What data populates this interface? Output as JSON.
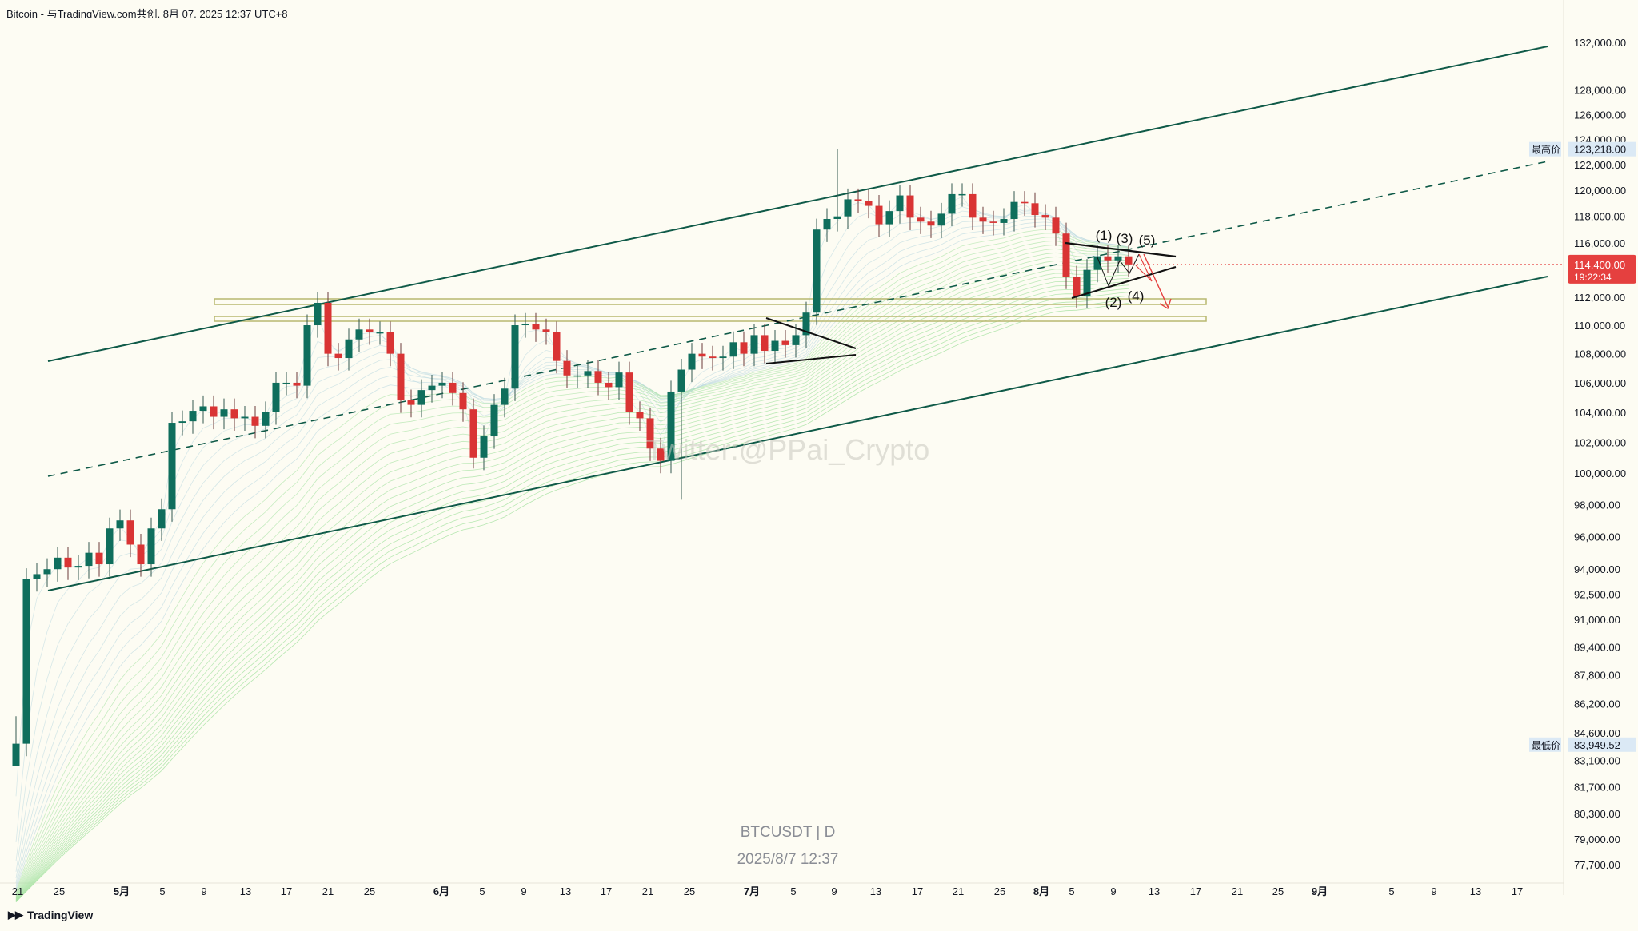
{
  "header": {
    "title": "Bitcoin - 与TradingView.com共创, 8月 07, 2025 12:37 UTC+8"
  },
  "watermark": "Twitter:@PPai_Crypto",
  "footer": {
    "brand": "TradingView",
    "symbol_label": "BTCUSDT | D",
    "timestamp_label": "2025/8/7 12:37"
  },
  "colors": {
    "up": "#0f6e5c",
    "down": "#d93434",
    "channel": "#0f5a48",
    "zone": "#b8b870",
    "price_badge": "#e5403f",
    "marker_bg": "#dbe9f5",
    "arrow": "#e5403f"
  },
  "chart_data": {
    "type": "candlestick",
    "symbol": "BTCUSDT",
    "interval": "D",
    "y_scale": "log",
    "ylim": [
      76800,
      133500
    ],
    "y_ticks": [
      "132,000.00",
      "128,000.00",
      "126,000.00",
      "124,000.00",
      "122,000.00",
      "120,000.00",
      "118,000.00",
      "116,000.00",
      "112,000.00",
      "110,000.00",
      "108,000.00",
      "106,000.00",
      "104,000.00",
      "102,000.00",
      "100,000.00",
      "98,000.00",
      "96,000.00",
      "94,000.00",
      "92,500.00",
      "91,000.00",
      "89,400.00",
      "87,800.00",
      "86,200.00",
      "84,600.00",
      "83,100.00",
      "81,700.00",
      "80,300.00",
      "79,000.00",
      "77,700.00"
    ],
    "x_ticks": [
      "21",
      "25",
      "5月",
      "5",
      "9",
      "13",
      "17",
      "21",
      "25",
      "6月",
      "5",
      "9",
      "13",
      "17",
      "21",
      "25",
      "7月",
      "5",
      "9",
      "13",
      "17",
      "21",
      "25",
      "8月",
      "5",
      "9",
      "13",
      "17",
      "21",
      "25",
      "9月",
      "5",
      "9",
      "13",
      "17"
    ],
    "current_price": {
      "label": "114,400.00",
      "countdown": "19:22:34",
      "value": 114400
    },
    "high_marker": {
      "label": "最高价",
      "value_label": "123,218.00",
      "value": 123218
    },
    "low_marker": {
      "label": "最低价",
      "value_label": "83,949.52",
      "value": 83949.52
    },
    "wave_labels": [
      "(1)",
      "(2)",
      "(3)",
      "(4)",
      "(5)"
    ],
    "close_series": [
      84000,
      93400,
      93700,
      94000,
      94700,
      94100,
      94200,
      95000,
      94300,
      96500,
      97000,
      95500,
      94300,
      96500,
      97700,
      103300,
      103400,
      104100,
      104400,
      103700,
      104200,
      103600,
      103700,
      103100,
      104000,
      106000,
      106000,
      105800,
      110000,
      111600,
      108000,
      107700,
      109000,
      109700,
      109500,
      109500,
      108000,
      104800,
      104500,
      105500,
      105800,
      106000,
      105300,
      104200,
      101000,
      102400,
      104500,
      105600,
      110000,
      110100,
      109700,
      109500,
      107500,
      106500,
      106500,
      106800,
      106000,
      105700,
      106700,
      104000,
      103600,
      101600,
      100800,
      105400,
      106900,
      108000,
      107800,
      107700,
      107800,
      108800,
      108000,
      109300,
      108200,
      108900,
      108600,
      109300,
      110900,
      117000,
      117800,
      118000,
      119300,
      119200,
      118800,
      117400,
      118400,
      119600,
      117900,
      117600,
      117300,
      118200,
      119700,
      119700,
      117900,
      117600,
      117500,
      117800,
      119100,
      119000,
      118100,
      117900,
      116700,
      113500,
      112100,
      114000,
      115000,
      114700,
      115000,
      114400
    ]
  }
}
